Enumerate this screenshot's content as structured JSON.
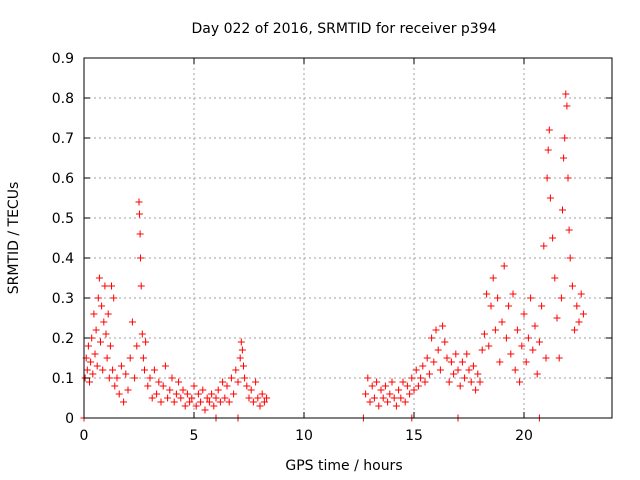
{
  "chart_data": {
    "type": "scatter",
    "title": "Day 022 of 2016, SRMTID for receiver p394",
    "xlabel": "GPS time / hours",
    "ylabel": "SRMTID / TECUs",
    "xlim": [
      0,
      24
    ],
    "ylim": [
      0,
      0.9
    ],
    "xticks": [
      0,
      5,
      10,
      15,
      20
    ],
    "xtick_labels": [
      "0",
      "5",
      "10",
      "15",
      "20"
    ],
    "yticks": [
      0,
      0.1,
      0.2,
      0.3,
      0.4,
      0.5,
      0.6,
      0.7,
      0.8,
      0.9
    ],
    "ytick_labels": [
      "0",
      "0.1",
      "0.2",
      "0.3",
      "0.4",
      "0.5",
      "0.6",
      "0.7",
      "0.8",
      "0.9"
    ],
    "grid": true,
    "marker": "+",
    "color": "#ff0000",
    "series": [
      {
        "name": "SRMTID",
        "points": [
          [
            0.05,
            0.1
          ],
          [
            0.1,
            0.15
          ],
          [
            0.15,
            0.12
          ],
          [
            0.2,
            0.18
          ],
          [
            0.25,
            0.09
          ],
          [
            0.3,
            0.14
          ],
          [
            0.35,
            0.2
          ],
          [
            0.4,
            0.11
          ],
          [
            0.45,
            0.26
          ],
          [
            0.5,
            0.16
          ],
          [
            0.55,
            0.22
          ],
          [
            0.6,
            0.13
          ],
          [
            0.65,
            0.3
          ],
          [
            0.7,
            0.35
          ],
          [
            0.75,
            0.19
          ],
          [
            0.8,
            0.28
          ],
          [
            0.85,
            0.12
          ],
          [
            0.9,
            0.24
          ],
          [
            0.95,
            0.33
          ],
          [
            1.0,
            0.21
          ],
          [
            1.05,
            0.15
          ],
          [
            1.1,
            0.26
          ],
          [
            1.15,
            0.1
          ],
          [
            1.2,
            0.18
          ],
          [
            1.25,
            0.33
          ],
          [
            1.3,
            0.12
          ],
          [
            1.35,
            0.3
          ],
          [
            1.4,
            0.08
          ],
          [
            1.5,
            0.1
          ],
          [
            1.6,
            0.06
          ],
          [
            1.7,
            0.13
          ],
          [
            1.8,
            0.04
          ],
          [
            1.9,
            0.11
          ],
          [
            2.0,
            0.07
          ],
          [
            2.1,
            0.15
          ],
          [
            2.2,
            0.24
          ],
          [
            2.3,
            0.1
          ],
          [
            2.4,
            0.18
          ],
          [
            2.5,
            0.54
          ],
          [
            2.52,
            0.51
          ],
          [
            2.55,
            0.46
          ],
          [
            2.57,
            0.4
          ],
          [
            2.6,
            0.33
          ],
          [
            2.65,
            0.21
          ],
          [
            2.7,
            0.15
          ],
          [
            2.75,
            0.12
          ],
          [
            2.8,
            0.19
          ],
          [
            2.9,
            0.08
          ],
          [
            3.0,
            0.1
          ],
          [
            3.1,
            0.05
          ],
          [
            3.2,
            0.12
          ],
          [
            3.3,
            0.06
          ],
          [
            3.4,
            0.09
          ],
          [
            3.5,
            0.04
          ],
          [
            3.6,
            0.08
          ],
          [
            3.7,
            0.13
          ],
          [
            3.8,
            0.05
          ],
          [
            3.9,
            0.07
          ],
          [
            4.0,
            0.1
          ],
          [
            4.1,
            0.04
          ],
          [
            4.2,
            0.06
          ],
          [
            4.3,
            0.09
          ],
          [
            4.4,
            0.05
          ],
          [
            4.5,
            0.07
          ],
          [
            4.6,
            0.03
          ],
          [
            4.7,
            0.06
          ],
          [
            4.8,
            0.04
          ],
          [
            4.9,
            0.05
          ],
          [
            5.0,
            0.08
          ],
          [
            5.1,
            0.03
          ],
          [
            5.2,
            0.06
          ],
          [
            5.3,
            0.04
          ],
          [
            5.4,
            0.07
          ],
          [
            5.5,
            0.02
          ],
          [
            5.6,
            0.05
          ],
          [
            5.7,
            0.04
          ],
          [
            5.8,
            0.06
          ],
          [
            5.9,
            0.03
          ],
          [
            6.0,
            0.05
          ],
          [
            6.1,
            0.07
          ],
          [
            6.2,
            0.04
          ],
          [
            6.3,
            0.09
          ],
          [
            6.4,
            0.05
          ],
          [
            6.5,
            0.08
          ],
          [
            6.6,
            0.04
          ],
          [
            6.7,
            0.1
          ],
          [
            6.8,
            0.06
          ],
          [
            6.9,
            0.12
          ],
          [
            7.0,
            0.09
          ],
          [
            7.1,
            0.15
          ],
          [
            7.15,
            0.19
          ],
          [
            7.2,
            0.17
          ],
          [
            7.25,
            0.13
          ],
          [
            7.3,
            0.1
          ],
          [
            7.4,
            0.08
          ],
          [
            7.5,
            0.05
          ],
          [
            7.6,
            0.07
          ],
          [
            7.7,
            0.04
          ],
          [
            7.8,
            0.09
          ],
          [
            7.9,
            0.05
          ],
          [
            8.0,
            0.03
          ],
          [
            8.1,
            0.06
          ],
          [
            8.2,
            0.04
          ],
          [
            8.3,
            0.05
          ],
          [
            0,
            0
          ],
          [
            6.0,
            0
          ],
          [
            7.0,
            0
          ],
          [
            12.7,
            0
          ],
          [
            14.9,
            0
          ],
          [
            17.0,
            0
          ],
          [
            20.7,
            0
          ],
          [
            12.8,
            0.06
          ],
          [
            12.9,
            0.1
          ],
          [
            13.0,
            0.04
          ],
          [
            13.1,
            0.08
          ],
          [
            13.2,
            0.05
          ],
          [
            13.3,
            0.09
          ],
          [
            13.4,
            0.03
          ],
          [
            13.5,
            0.07
          ],
          [
            13.6,
            0.05
          ],
          [
            13.7,
            0.08
          ],
          [
            13.8,
            0.04
          ],
          [
            13.9,
            0.06
          ],
          [
            14.0,
            0.09
          ],
          [
            14.1,
            0.05
          ],
          [
            14.2,
            0.03
          ],
          [
            14.3,
            0.07
          ],
          [
            14.4,
            0.05
          ],
          [
            14.5,
            0.09
          ],
          [
            14.6,
            0.04
          ],
          [
            14.7,
            0.08
          ],
          [
            14.8,
            0.06
          ],
          [
            14.9,
            0.1
          ],
          [
            15.0,
            0.07
          ],
          [
            15.1,
            0.12
          ],
          [
            15.2,
            0.08
          ],
          [
            15.3,
            0.1
          ],
          [
            15.4,
            0.13
          ],
          [
            15.5,
            0.09
          ],
          [
            15.6,
            0.15
          ],
          [
            15.7,
            0.11
          ],
          [
            15.8,
            0.2
          ],
          [
            15.9,
            0.14
          ],
          [
            16.0,
            0.22
          ],
          [
            16.1,
            0.17
          ],
          [
            16.2,
            0.12
          ],
          [
            16.3,
            0.23
          ],
          [
            16.4,
            0.19
          ],
          [
            16.5,
            0.15
          ],
          [
            16.6,
            0.09
          ],
          [
            16.7,
            0.14
          ],
          [
            16.8,
            0.11
          ],
          [
            16.9,
            0.16
          ],
          [
            17.0,
            0.12
          ],
          [
            17.1,
            0.08
          ],
          [
            17.2,
            0.14
          ],
          [
            17.3,
            0.1
          ],
          [
            17.4,
            0.16
          ],
          [
            17.5,
            0.12
          ],
          [
            17.6,
            0.09
          ],
          [
            17.7,
            0.13
          ],
          [
            17.8,
            0.07
          ],
          [
            17.9,
            0.11
          ],
          [
            18.0,
            0.09
          ],
          [
            18.1,
            0.17
          ],
          [
            18.2,
            0.21
          ],
          [
            18.3,
            0.31
          ],
          [
            18.4,
            0.18
          ],
          [
            18.5,
            0.28
          ],
          [
            18.6,
            0.35
          ],
          [
            18.7,
            0.22
          ],
          [
            18.8,
            0.3
          ],
          [
            18.9,
            0.14
          ],
          [
            19.0,
            0.24
          ],
          [
            19.1,
            0.38
          ],
          [
            19.2,
            0.2
          ],
          [
            19.3,
            0.28
          ],
          [
            19.4,
            0.16
          ],
          [
            19.5,
            0.31
          ],
          [
            19.6,
            0.12
          ],
          [
            19.7,
            0.22
          ],
          [
            19.8,
            0.09
          ],
          [
            19.9,
            0.18
          ],
          [
            20.0,
            0.26
          ],
          [
            20.1,
            0.14
          ],
          [
            20.2,
            0.2
          ],
          [
            20.3,
            0.3
          ],
          [
            20.4,
            0.17
          ],
          [
            20.5,
            0.23
          ],
          [
            20.6,
            0.11
          ],
          [
            20.7,
            0.19
          ],
          [
            20.8,
            0.28
          ],
          [
            20.9,
            0.43
          ],
          [
            21.0,
            0.15
          ],
          [
            21.05,
            0.6
          ],
          [
            21.1,
            0.67
          ],
          [
            21.15,
            0.72
          ],
          [
            21.2,
            0.55
          ],
          [
            21.3,
            0.45
          ],
          [
            21.4,
            0.35
          ],
          [
            21.5,
            0.25
          ],
          [
            21.6,
            0.15
          ],
          [
            21.7,
            0.3
          ],
          [
            21.75,
            0.52
          ],
          [
            21.8,
            0.65
          ],
          [
            21.85,
            0.7
          ],
          [
            21.9,
            0.81
          ],
          [
            21.95,
            0.78
          ],
          [
            22.0,
            0.6
          ],
          [
            22.05,
            0.47
          ],
          [
            22.1,
            0.4
          ],
          [
            22.2,
            0.33
          ],
          [
            22.3,
            0.22
          ],
          [
            22.4,
            0.28
          ],
          [
            22.5,
            0.24
          ],
          [
            22.6,
            0.31
          ],
          [
            22.7,
            0.26
          ]
        ]
      }
    ]
  }
}
